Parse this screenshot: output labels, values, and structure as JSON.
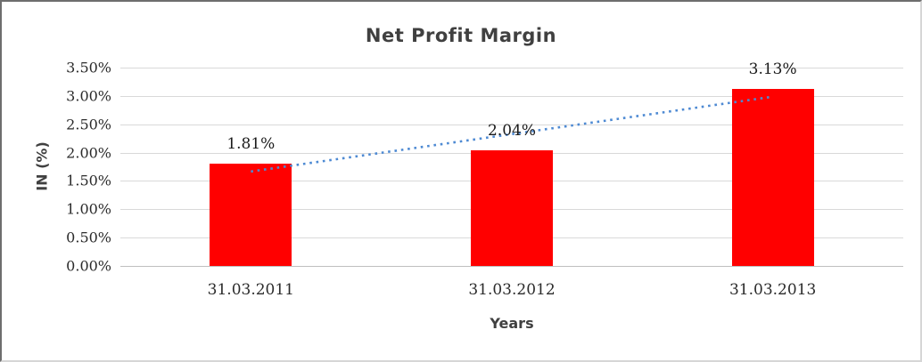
{
  "chart_data": {
    "type": "bar",
    "title": "Net Profit Margin",
    "xlabel": "Years",
    "ylabel": "IN (%)",
    "categories": [
      "31.03.2011",
      "31.03.2012",
      "31.03.2013"
    ],
    "values": [
      1.81,
      2.04,
      3.13
    ],
    "data_labels": [
      "1.81%",
      "2.04%",
      "3.13%"
    ],
    "ylim": [
      0,
      3.5
    ],
    "ytick_step": 0.5,
    "ytick_labels": [
      "0.00%",
      "0.50%",
      "1.00%",
      "1.50%",
      "2.00%",
      "2.50%",
      "3.00%",
      "3.50%"
    ],
    "grid": true,
    "legend": "none",
    "trendline": {
      "type": "linear",
      "style": "dotted"
    },
    "colors": {
      "bar": "#FF0000",
      "trendline": "#4E8AD3",
      "gridline": "#D9D9D9",
      "axis_line": "#BFBFBF",
      "title_text": "#404040",
      "axis_title_text": "#404040",
      "tick_text": "#2B2B2B",
      "data_label_text": "#1A1A1A"
    }
  }
}
